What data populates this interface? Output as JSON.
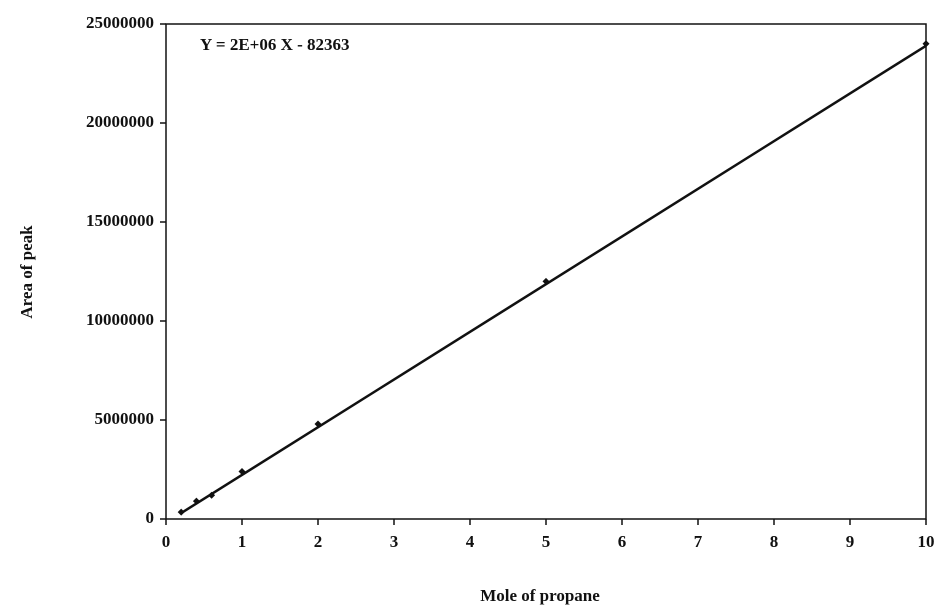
{
  "chart_data": {
    "type": "scatter",
    "equation": "Y = 2E+06 X - 82363",
    "x_label": "Mole of propane",
    "y_label": "Area of  peak",
    "x": [
      0.2,
      0.4,
      0.6,
      1,
      2,
      5,
      10
    ],
    "values": [
      350000,
      900000,
      1200000,
      2400000,
      4800000,
      12000000,
      24000000
    ],
    "color": "#111111",
    "trendline": {
      "x": [
        0.2,
        10
      ],
      "values": [
        300000,
        23900000
      ]
    },
    "xlim": [
      0,
      10
    ],
    "xticks": [
      0,
      1,
      2,
      3,
      4,
      5,
      6,
      7,
      8,
      9,
      10
    ],
    "ylim": [
      0,
      25000000
    ],
    "yticks": [
      0,
      5000000,
      10000000,
      15000000,
      20000000,
      25000000
    ],
    "grid": false
  }
}
